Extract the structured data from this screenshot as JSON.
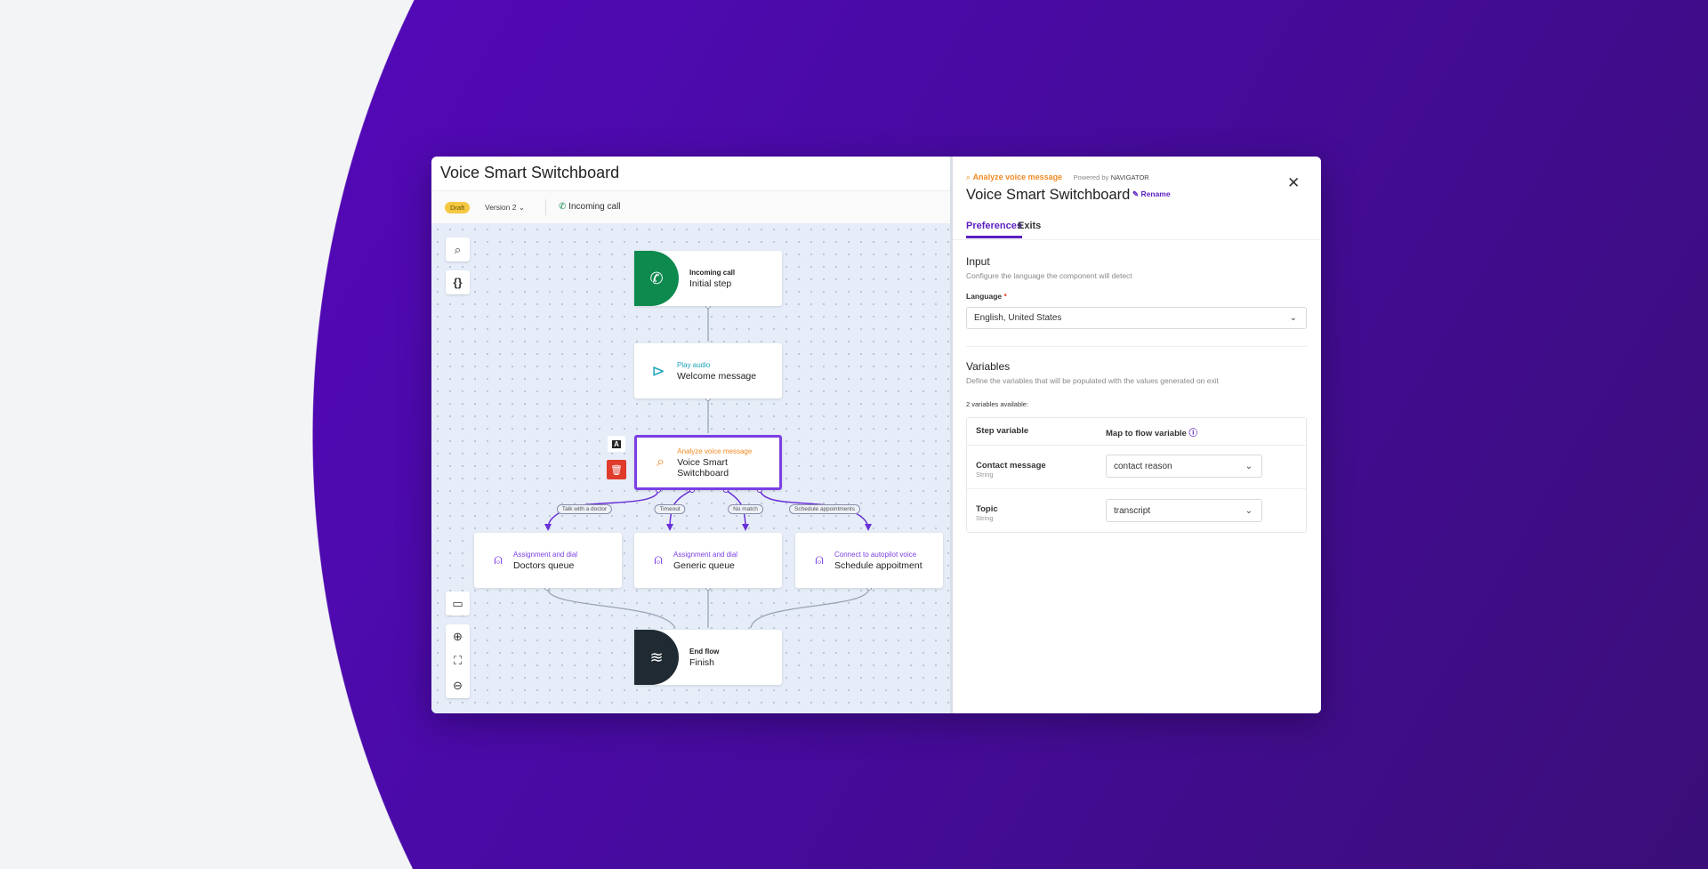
{
  "editor": {
    "title": "Voice Smart Switchboard",
    "status_badge": "Draft",
    "version": "Version 2",
    "trigger": "Incoming call"
  },
  "canvas": {
    "tools": {
      "search": "search-icon",
      "variables": "{}",
      "comment": "comment-icon",
      "zoom_in": "zoom-in-icon",
      "fit": "fit-icon",
      "zoom_out": "zoom-out-icon"
    },
    "nodes": [
      {
        "type": "Incoming call",
        "name": "Initial step",
        "color": "#0f8a4f"
      },
      {
        "type": "Play audio",
        "name": "Welcome message",
        "color": "#1aa3b8"
      },
      {
        "type": "Analyze voice message",
        "name": "Voice Smart Switchboard",
        "color": "#f08a24"
      },
      {
        "type": "Assignment and dial",
        "name": "Doctors queue",
        "color": "#7b3fe4"
      },
      {
        "type": "Assignment and dial",
        "name": "Generic queue",
        "color": "#7b3fe4"
      },
      {
        "type": "Connect to autopilot voice",
        "name": "Schedule appoitment",
        "color": "#7b3fe4"
      },
      {
        "type": "End flow",
        "name": "Finish",
        "color": "#1f2a33"
      }
    ],
    "node_actions": {
      "label_button": "A"
    },
    "edges": [
      "Talk with a doctor",
      "Timeout",
      "No match",
      "Schedule appointments"
    ]
  },
  "panel": {
    "component_type": "Analyze voice message",
    "powered_by": "Powered by",
    "provider": "NAVIGATOR",
    "title": "Voice Smart Switchboard",
    "rename": "Rename",
    "tabs": [
      {
        "label": "Preferences",
        "active": true
      },
      {
        "label": "Exits",
        "active": false
      }
    ],
    "input": {
      "heading": "Input",
      "description": "Configure the language the component will detect",
      "language_label": "Language",
      "required": "*",
      "language_value": "English, United States"
    },
    "variables": {
      "heading": "Variables",
      "description": "Define the variables that will be populated with the values generated on exit",
      "count": "2 variables available:",
      "col_step": "Step variable",
      "col_map": "Map to flow variable",
      "rows": [
        {
          "name": "Contact message",
          "type": "String",
          "value": "contact reason"
        },
        {
          "name": "Topic",
          "type": "String",
          "value": "transcript"
        }
      ]
    }
  },
  "colors": {
    "accent": "#5b1fc2",
    "background_purple": "#4a0aa8",
    "selected_border": "#7b3fe4",
    "delete": "#e03b2b",
    "draft": "#f5c842"
  }
}
